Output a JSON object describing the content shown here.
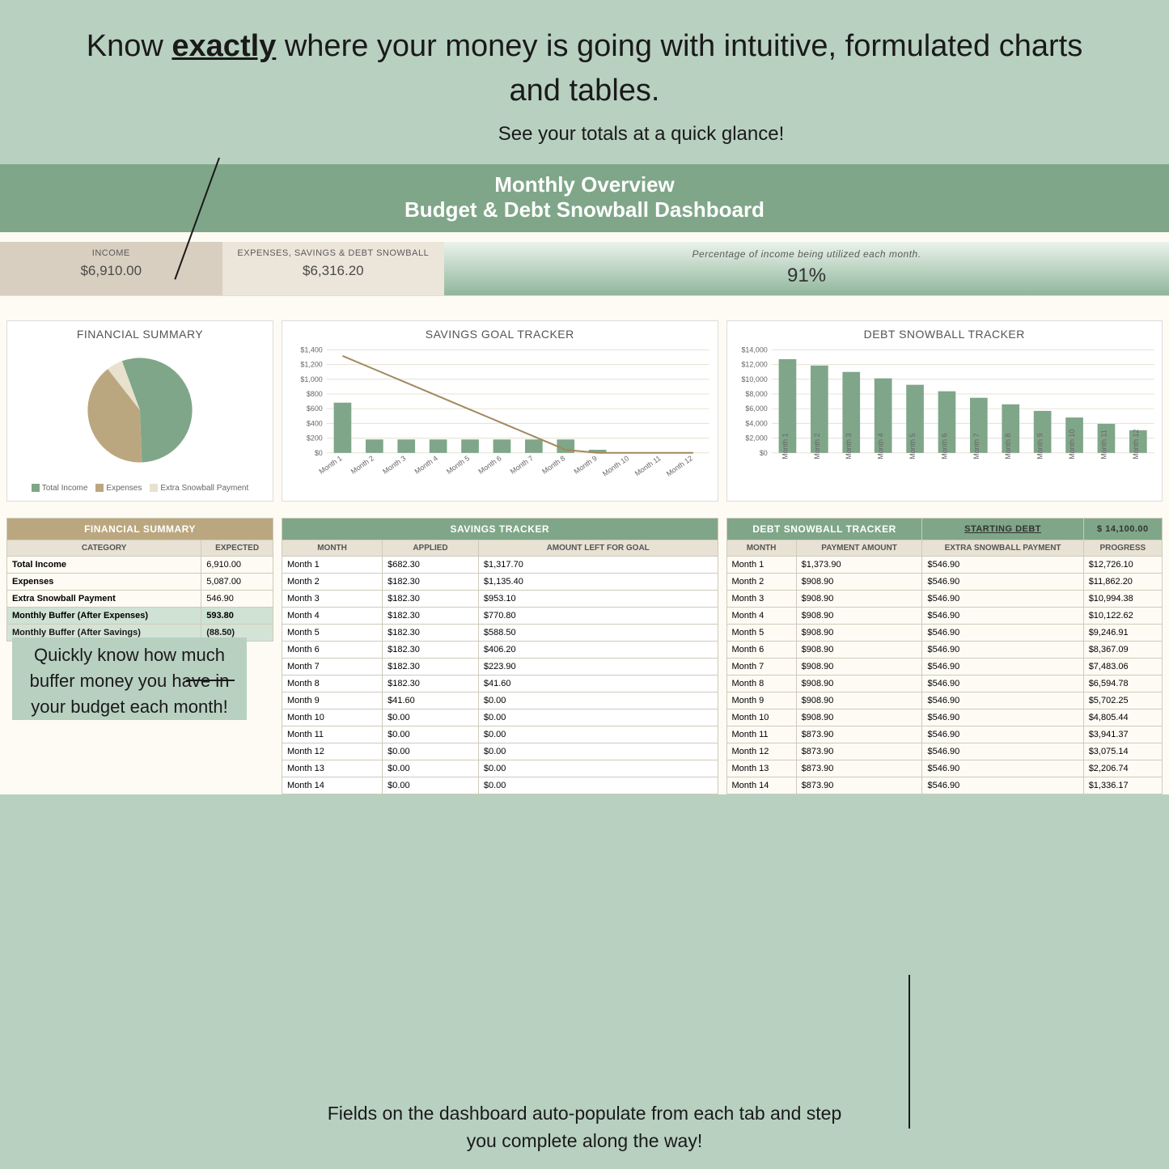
{
  "headline": {
    "prefix": "Know ",
    "bold": "exactly",
    "rest": " where your money is going with intuitive, formulated charts and tables."
  },
  "callouts": {
    "top": "See your totals at a quick glance!",
    "left": "Quickly know how much buffer money you have in your budget each month!",
    "bottom": "Fields on the dashboard auto-populate from each tab and step you complete along the way!"
  },
  "dashboard": {
    "title_1": "Monthly Overview",
    "title_2": "Budget & Debt Snowball Dashboard",
    "kpis": {
      "income_label": "INCOME",
      "income_value": "$6,910.00",
      "expenses_label": "EXPENSES, SAVINGS & DEBT SNOWBALL",
      "expenses_value": "$6,316.20",
      "percent_label": "Percentage of income being utilized each month.",
      "percent_value": "91%"
    }
  },
  "financial_summary_chart": {
    "title": "FINANCIAL SUMMARY",
    "type": "pie",
    "slices": [
      {
        "label": "Total Income",
        "value": 55,
        "color": "#7fa688"
      },
      {
        "label": "Expenses",
        "value": 40,
        "color": "#bba77f"
      },
      {
        "label": "Extra Snowball Payment",
        "value": 5,
        "color": "#e7e1ce"
      }
    ],
    "legend_labels": [
      "Total Income",
      "Expenses",
      "Extra Snowball Payment"
    ]
  },
  "savings_chart": {
    "title": "SAVINGS GOAL TRACKER",
    "type": "bar+line",
    "y_ticks": [
      "$0",
      "$200",
      "$400",
      "$600",
      "$800",
      "$1,000",
      "$1,200",
      "$1,400"
    ],
    "y_max": 1400,
    "line_values": [
      1317,
      1135,
      953,
      770,
      588,
      406,
      224,
      42,
      0,
      0,
      0,
      0
    ],
    "bar_values": [
      682,
      182,
      182,
      182,
      182,
      182,
      182,
      182,
      42,
      0,
      0,
      0
    ],
    "x_labels": [
      "Month 1",
      "Month 2",
      "Month 3",
      "Month 4",
      "Month 5",
      "Month 6",
      "Month 7",
      "Month 8",
      "Month 9",
      "Month 10",
      "Month 11",
      "Month 12"
    ],
    "bar_color": "#7fa688",
    "line_color": "#a08a5e"
  },
  "debt_chart": {
    "title": "DEBT SNOWBALL TRACKER",
    "type": "bar",
    "y_ticks": [
      "$0",
      "$2,000",
      "$4,000",
      "$6,000",
      "$8,000",
      "$10,000",
      "$12,000",
      "$14,000"
    ],
    "y_max": 14000,
    "values": [
      12726,
      11862,
      10994,
      10122,
      9247,
      8367,
      7483,
      6595,
      5702,
      4805,
      3941,
      3075
    ],
    "x_labels": [
      "Month 1",
      "Month 2",
      "Month 3",
      "Month 4",
      "Month 5",
      "Month 6",
      "Month 7",
      "Month 8",
      "Month 9",
      "Month 10",
      "Month 11",
      "Month 12"
    ],
    "bar_color": "#7fa688"
  },
  "fin_summary_table": {
    "title": "FINANCIAL SUMMARY",
    "headers": [
      "CATEGORY",
      "EXPECTED"
    ],
    "rows": [
      [
        "Total Income",
        "6,910.00"
      ],
      [
        "Expenses",
        "5,087.00"
      ],
      [
        "Extra Snowball Payment",
        "546.90"
      ]
    ],
    "buffer_rows": [
      [
        "Monthly Buffer (After Expenses)",
        "593.80"
      ],
      [
        "Monthly Buffer (After Savings)",
        "(88.50)"
      ]
    ]
  },
  "savings_table": {
    "title": "SAVINGS TRACKER",
    "headers": [
      "MONTH",
      "APPLIED",
      "AMOUNT LEFT FOR GOAL"
    ],
    "rows": [
      [
        "Month 1",
        "$682.30",
        "$1,317.70"
      ],
      [
        "Month 2",
        "$182.30",
        "$1,135.40"
      ],
      [
        "Month 3",
        "$182.30",
        "$953.10"
      ],
      [
        "Month 4",
        "$182.30",
        "$770.80"
      ],
      [
        "Month 5",
        "$182.30",
        "$588.50"
      ],
      [
        "Month 6",
        "$182.30",
        "$406.20"
      ],
      [
        "Month 7",
        "$182.30",
        "$223.90"
      ],
      [
        "Month 8",
        "$182.30",
        "$41.60"
      ],
      [
        "Month 9",
        "$41.60",
        "$0.00"
      ],
      [
        "Month 10",
        "$0.00",
        "$0.00"
      ],
      [
        "Month 11",
        "$0.00",
        "$0.00"
      ],
      [
        "Month 12",
        "$0.00",
        "$0.00"
      ],
      [
        "Month 13",
        "$0.00",
        "$0.00"
      ],
      [
        "Month 14",
        "$0.00",
        "$0.00"
      ]
    ]
  },
  "debt_table": {
    "title": "DEBT SNOWBALL TRACKER",
    "starting_label": "STARTING DEBT",
    "starting_value": "$ 14,100.00",
    "headers": [
      "MONTH",
      "PAYMENT AMOUNT",
      "EXTRA SNOWBALL PAYMENT",
      "PROGRESS"
    ],
    "rows": [
      [
        "Month 1",
        "$1,373.90",
        "$546.90",
        "$12,726.10"
      ],
      [
        "Month 2",
        "$908.90",
        "$546.90",
        "$11,862.20"
      ],
      [
        "Month 3",
        "$908.90",
        "$546.90",
        "$10,994.38"
      ],
      [
        "Month 4",
        "$908.90",
        "$546.90",
        "$10,122.62"
      ],
      [
        "Month 5",
        "$908.90",
        "$546.90",
        "$9,246.91"
      ],
      [
        "Month 6",
        "$908.90",
        "$546.90",
        "$8,367.09"
      ],
      [
        "Month 7",
        "$908.90",
        "$546.90",
        "$7,483.06"
      ],
      [
        "Month 8",
        "$908.90",
        "$546.90",
        "$6,594.78"
      ],
      [
        "Month 9",
        "$908.90",
        "$546.90",
        "$5,702.25"
      ],
      [
        "Month 10",
        "$908.90",
        "$546.90",
        "$4,805.44"
      ],
      [
        "Month 11",
        "$873.90",
        "$546.90",
        "$3,941.37"
      ],
      [
        "Month 12",
        "$873.90",
        "$546.90",
        "$3,075.14"
      ],
      [
        "Month 13",
        "$873.90",
        "$546.90",
        "$2,206.74"
      ],
      [
        "Month 14",
        "$873.90",
        "$546.90",
        "$1,336.17"
      ]
    ]
  },
  "colors": {
    "page_bg": "#b8d0c0",
    "dash_bg": "#fdfbf4",
    "header_green": "#7fa688",
    "tan": "#bba77f"
  }
}
